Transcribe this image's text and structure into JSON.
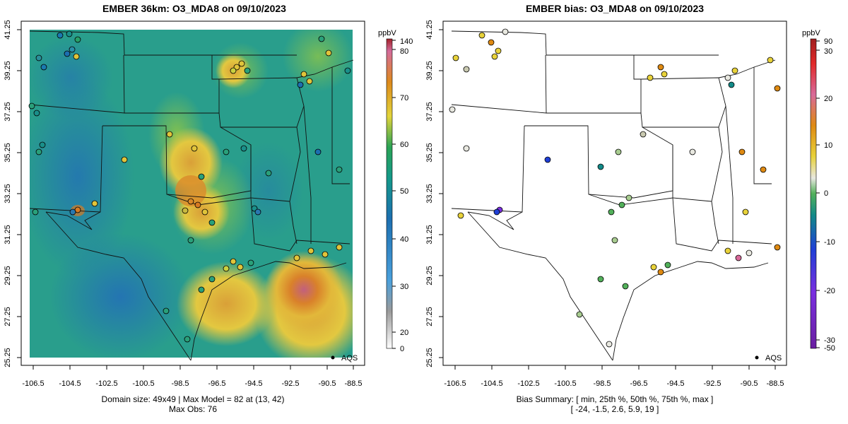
{
  "left_panel": {
    "title": "EMBER 36km: O3_MDA8 on 09/10/2023",
    "footer_line1": "Domain size: 49x49 | Max Model = 82 at (13, 42)",
    "footer_line2": "Max Obs: 76",
    "legend_label": "AQS",
    "colorbar_unit": "ppbV",
    "colorbar_ticks": [
      "0",
      "20",
      "30",
      "40",
      "50",
      "60",
      "70",
      "80",
      "140"
    ]
  },
  "right_panel": {
    "title": "EMBER bias: O3_MDA8 on 09/10/2023",
    "footer_line1": "Bias Summary: [ min, 25th %, 50th %, 75th %, max ]",
    "footer_line2": "[ -24,   -1.5,   2.6,   5.9,   19 ]",
    "legend_label": "AQS",
    "colorbar_unit": "ppbV",
    "colorbar_ticks": [
      "-50",
      "-30",
      "-20",
      "-10",
      "0",
      "10",
      "20",
      "30",
      "90"
    ]
  },
  "axes": {
    "x_ticks": [
      "-106.5",
      "-104.5",
      "-102.5",
      "-100.5",
      "-98.5",
      "-96.5",
      "-94.5",
      "-92.5",
      "-90.5",
      "-88.5"
    ],
    "y_ticks": [
      "25.25",
      "27.25",
      "29.25",
      "31.25",
      "33.25",
      "35.25",
      "37.25",
      "39.25",
      "41.25"
    ]
  },
  "colors": {
    "model_low": "#1f6fb2",
    "model_mid": "#2aa37a",
    "model_high": "#e8d23a",
    "model_peak": "#d77a22",
    "model_max": "#c45a7a"
  },
  "chart_data": [
    {
      "type": "heatmap",
      "title": "EMBER 36km: O3_MDA8 on 09/10/2023",
      "xlim": [
        -107.3,
        -88.2
      ],
      "ylim": [
        25.25,
        41.3
      ],
      "colorbar_range": [
        0,
        140
      ],
      "max_model": 82,
      "max_obs": 76,
      "legend": "AQS"
    },
    {
      "type": "scatter",
      "title": "EMBER bias: O3_MDA8 on 09/10/2023",
      "xlim": [
        -107.3,
        -88.2
      ],
      "ylim": [
        25.25,
        41.3
      ],
      "colorbar_range": [
        -50,
        90
      ],
      "bias_summary": {
        "min": -24,
        "p25": -1.5,
        "p50": 2.6,
        "p75": 5.9,
        "max": 19
      },
      "legend": "AQS"
    }
  ]
}
